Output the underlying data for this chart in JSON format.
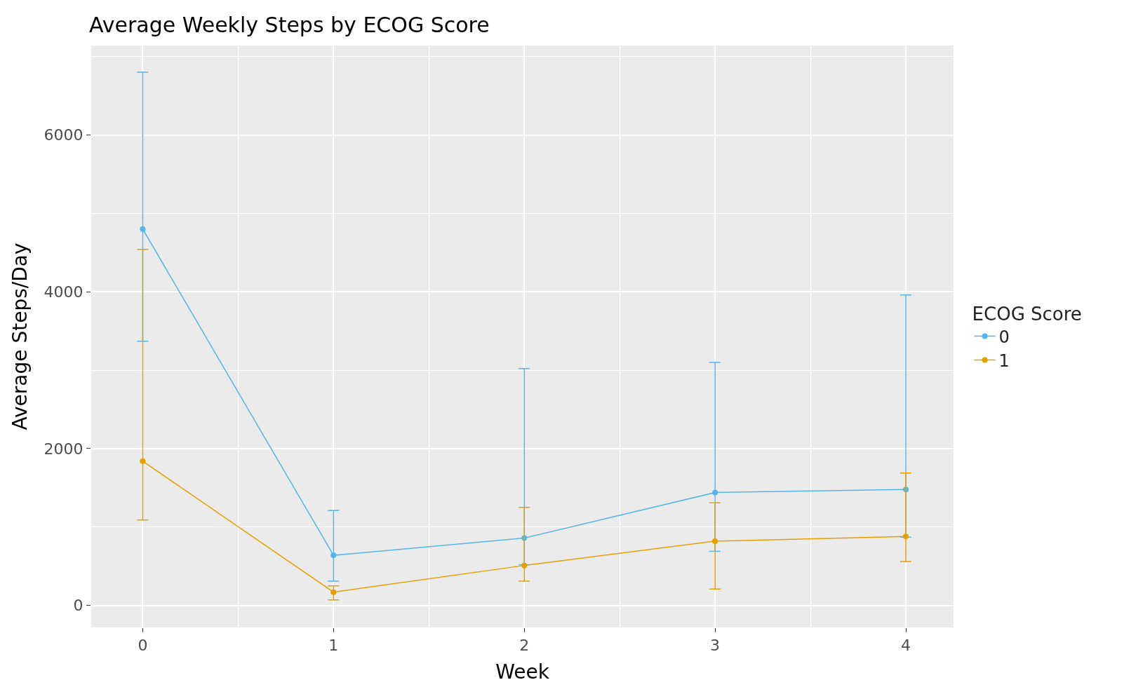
{
  "chart_data": {
    "type": "line",
    "title": "Average Weekly Steps by ECOG Score",
    "xlabel": "Week",
    "ylabel": "Average Steps/Day",
    "legend_title": "ECOG Score",
    "x": [
      0,
      1,
      2,
      3,
      4
    ],
    "series": [
      {
        "name": "0",
        "color": "#56b4e9",
        "values": [
          4800,
          640,
          860,
          1440,
          1480
        ],
        "errors": [
          [
            3370,
            6800
          ],
          [
            310,
            1210
          ],
          [
            520,
            3020
          ],
          [
            690,
            3100
          ],
          [
            870,
            3960
          ]
        ]
      },
      {
        "name": "1",
        "color": "#e69f00",
        "values": [
          1840,
          170,
          510,
          820,
          880
        ],
        "errors": [
          [
            1090,
            4540
          ],
          [
            70,
            250
          ],
          [
            310,
            1250
          ],
          [
            210,
            1310
          ],
          [
            560,
            1690
          ]
        ]
      }
    ],
    "xlim": [
      -0.27,
      4.25
    ],
    "ylim": [
      -280,
      7140
    ],
    "xticks": [
      0,
      1,
      2,
      3,
      4
    ],
    "yticks": [
      0,
      2000,
      4000,
      6000
    ],
    "grid": true,
    "legend": "right",
    "marker": "circle",
    "line_style": "solid"
  }
}
